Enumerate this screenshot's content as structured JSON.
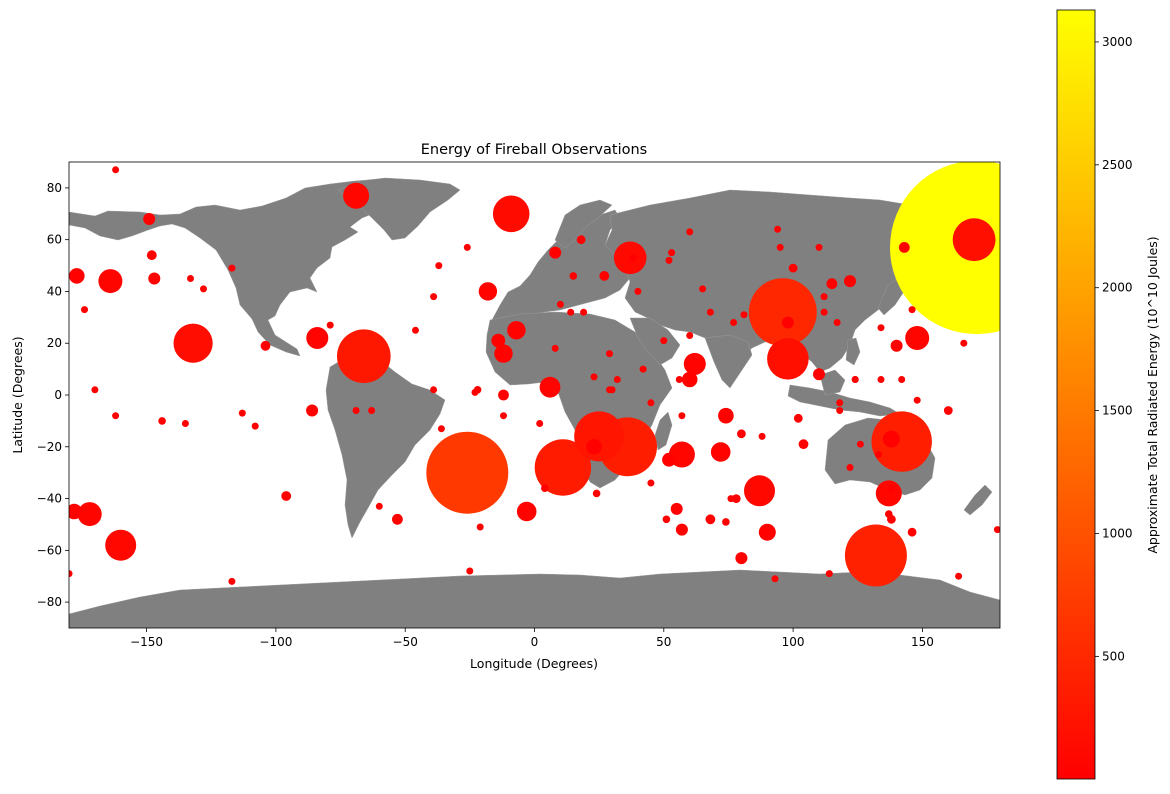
{
  "chart_data": {
    "type": "scatter",
    "title": "Energy of Fireball Observations",
    "xlabel": "Longitude (Degrees)",
    "ylabel": "Latitude (Degrees)",
    "xlim": [
      -180,
      180
    ],
    "ylim": [
      -90,
      90
    ],
    "xticks": [
      -150,
      -100,
      -50,
      0,
      50,
      100,
      150
    ],
    "yticks": [
      -80,
      -60,
      -40,
      -20,
      0,
      20,
      40,
      60,
      80
    ],
    "basemap": "world land masses",
    "colors": {
      "land": "#808080",
      "plot_background": "#ffffff",
      "colormap_low": "#ff0000",
      "colormap_high": "#ffff00"
    },
    "colorbar": {
      "label": "Approximate Total Radiated Energy (10^10 Joules)",
      "colormap": "red-to-yellow",
      "range": [
        1,
        3130
      ],
      "ticks": [
        500,
        1000,
        1500,
        2000,
        2500,
        3000
      ]
    },
    "grid": false,
    "points": [
      {
        "lon": 171,
        "lat": 57,
        "energy": 3130
      },
      {
        "lon": -26,
        "lat": -30,
        "energy": 700
      },
      {
        "lon": 96,
        "lat": 32,
        "energy": 480
      },
      {
        "lon": 132,
        "lat": -62,
        "energy": 400
      },
      {
        "lon": 142,
        "lat": -18,
        "energy": 380
      },
      {
        "lon": 36,
        "lat": -20,
        "energy": 360
      },
      {
        "lon": 11,
        "lat": -28,
        "energy": 330
      },
      {
        "lon": -66,
        "lat": 15,
        "energy": 300
      },
      {
        "lon": 25,
        "lat": -16,
        "energy": 260
      },
      {
        "lon": 98,
        "lat": 14,
        "energy": 180
      },
      {
        "lon": 170,
        "lat": 60,
        "energy": 190
      },
      {
        "lon": -132,
        "lat": 20,
        "energy": 160
      },
      {
        "lon": -9,
        "lat": 70,
        "energy": 140
      },
      {
        "lon": 37,
        "lat": 53,
        "energy": 110
      },
      {
        "lon": 87,
        "lat": -37,
        "energy": 100
      },
      {
        "lon": -160,
        "lat": -58,
        "energy": 100
      },
      {
        "lon": 137,
        "lat": -38,
        "energy": 70
      },
      {
        "lon": 57,
        "lat": -23,
        "energy": 70
      },
      {
        "lon": -69,
        "lat": 77,
        "energy": 70
      },
      {
        "lon": 148,
        "lat": 22,
        "energy": 60
      },
      {
        "lon": -172,
        "lat": -46,
        "energy": 60
      },
      {
        "lon": -164,
        "lat": 44,
        "energy": 60
      },
      {
        "lon": -84,
        "lat": 22,
        "energy": 50
      },
      {
        "lon": 62,
        "lat": 12,
        "energy": 50
      },
      {
        "lon": 72,
        "lat": -22,
        "energy": 40
      },
      {
        "lon": 6,
        "lat": 3,
        "energy": 45
      },
      {
        "lon": -3,
        "lat": -45,
        "energy": 40
      },
      {
        "lon": -12,
        "lat": 16,
        "energy": 35
      },
      {
        "lon": -7,
        "lat": 25,
        "energy": 35
      },
      {
        "lon": -18,
        "lat": 40,
        "energy": 35
      },
      {
        "lon": 90,
        "lat": -53,
        "energy": 30
      },
      {
        "lon": 138,
        "lat": -17,
        "energy": 30
      },
      {
        "lon": 74,
        "lat": -8,
        "energy": 25
      },
      {
        "lon": -177,
        "lat": 46,
        "energy": 25
      },
      {
        "lon": -178,
        "lat": -45,
        "energy": 25
      },
      {
        "lon": 60,
        "lat": 6,
        "energy": 25
      },
      {
        "lon": 23,
        "lat": -20,
        "energy": 25
      },
      {
        "lon": -14,
        "lat": 21,
        "energy": 20
      },
      {
        "lon": 52,
        "lat": -25,
        "energy": 20
      },
      {
        "lon": 8,
        "lat": 55,
        "energy": 15
      },
      {
        "lon": 55,
        "lat": -44,
        "energy": 15
      },
      {
        "lon": -147,
        "lat": 45,
        "energy": 15
      },
      {
        "lon": -149,
        "lat": 68,
        "energy": 15
      },
      {
        "lon": -86,
        "lat": -6,
        "energy": 15
      },
      {
        "lon": 98,
        "lat": 28,
        "energy": 15
      },
      {
        "lon": 110,
        "lat": 8,
        "energy": 15
      },
      {
        "lon": 122,
        "lat": 44,
        "energy": 15
      },
      {
        "lon": 80,
        "lat": -63,
        "energy": 15
      },
      {
        "lon": 57,
        "lat": -52,
        "energy": 15
      },
      {
        "lon": -53,
        "lat": -48,
        "energy": 12
      },
      {
        "lon": -12,
        "lat": 0,
        "energy": 12
      },
      {
        "lon": 140,
        "lat": 19,
        "energy": 15
      },
      {
        "lon": 143,
        "lat": 57,
        "energy": 12
      },
      {
        "lon": 115,
        "lat": 43,
        "energy": 12
      },
      {
        "lon": -148,
        "lat": 54,
        "energy": 10
      },
      {
        "lon": -96,
        "lat": -39,
        "energy": 10
      },
      {
        "lon": 104,
        "lat": -19,
        "energy": 10
      },
      {
        "lon": -104,
        "lat": 19,
        "energy": 10
      },
      {
        "lon": 27,
        "lat": 46,
        "energy": 10
      },
      {
        "lon": 68,
        "lat": -48,
        "energy": 10
      },
      {
        "lon": 160,
        "lat": -6,
        "energy": 8
      },
      {
        "lon": 78,
        "lat": -40,
        "energy": 8
      },
      {
        "lon": 138,
        "lat": -48,
        "energy": 8
      },
      {
        "lon": 146,
        "lat": -53,
        "energy": 8
      },
      {
        "lon": 80,
        "lat": -15,
        "energy": 8
      },
      {
        "lon": 100,
        "lat": 49,
        "energy": 8
      },
      {
        "lon": 102,
        "lat": -9,
        "energy": 8
      },
      {
        "lon": 18,
        "lat": 60,
        "energy": 8
      },
      {
        "lon": 15,
        "lat": 46,
        "energy": 6
      },
      {
        "lon": -22,
        "lat": 2,
        "energy": 6
      },
      {
        "lon": -144,
        "lat": -10,
        "energy": 6
      },
      {
        "lon": 38,
        "lat": 53,
        "energy": 5
      },
      {
        "lon": 4,
        "lat": -36,
        "energy": 6
      },
      {
        "lon": 24,
        "lat": -38,
        "energy": 6
      },
      {
        "lon": 51,
        "lat": -48,
        "energy": 6
      },
      {
        "lon": 137,
        "lat": -46,
        "energy": 6
      },
      {
        "lon": 74,
        "lat": -49,
        "energy": 6
      },
      {
        "lon": 88,
        "lat": -16,
        "energy": 5
      },
      {
        "lon": -180,
        "lat": -69,
        "energy": 5
      },
      {
        "lon": -39,
        "lat": 2,
        "energy": 5
      },
      {
        "lon": 179,
        "lat": -52,
        "energy": 5
      },
      {
        "lon": 2,
        "lat": -11,
        "energy": 4
      },
      {
        "lon": 142,
        "lat": 6,
        "energy": 4
      },
      {
        "lon": 76,
        "lat": -40,
        "energy": 4
      },
      {
        "lon": 110,
        "lat": 57,
        "energy": 4
      },
      {
        "lon": 134,
        "lat": 26,
        "energy": 4
      },
      {
        "lon": 124,
        "lat": 6,
        "energy": 4
      },
      {
        "lon": -162,
        "lat": -8,
        "energy": 4
      },
      {
        "lon": -60,
        "lat": -43,
        "energy": 4
      },
      {
        "lon": -23,
        "lat": 1,
        "energy": 4
      },
      {
        "lon": -170,
        "lat": 2,
        "energy": 3
      },
      {
        "lon": -36,
        "lat": -13,
        "energy": 3
      },
      {
        "lon": 45,
        "lat": -3,
        "energy": 3
      },
      {
        "lon": 95,
        "lat": 57,
        "energy": 3
      },
      {
        "lon": 94,
        "lat": 64,
        "energy": 3
      },
      {
        "lon": -25,
        "lat": -68,
        "energy": 3
      },
      {
        "lon": 164,
        "lat": -70,
        "energy": 3
      },
      {
        "lon": 117,
        "lat": 28,
        "energy": 3
      },
      {
        "lon": -117,
        "lat": -72,
        "energy": 3
      },
      {
        "lon": 93,
        "lat": -71,
        "energy": 3
      },
      {
        "lon": 29,
        "lat": 2,
        "energy": 3
      },
      {
        "lon": 45,
        "lat": -34,
        "energy": 3
      },
      {
        "lon": 30,
        "lat": 2,
        "energy": 3
      },
      {
        "lon": -21,
        "lat": -51,
        "energy": 2
      },
      {
        "lon": -162,
        "lat": 87,
        "energy": 2
      },
      {
        "lon": -113,
        "lat": -7,
        "energy": 2
      },
      {
        "lon": -46,
        "lat": 25,
        "energy": 2
      },
      {
        "lon": -39,
        "lat": 38,
        "energy": 2
      },
      {
        "lon": -37,
        "lat": 50,
        "energy": 2
      },
      {
        "lon": -26,
        "lat": 57,
        "energy": 2
      },
      {
        "lon": -12,
        "lat": -8,
        "energy": 2
      },
      {
        "lon": 10,
        "lat": 35,
        "energy": 2
      },
      {
        "lon": 8,
        "lat": 18,
        "energy": 2
      },
      {
        "lon": 14,
        "lat": 32,
        "energy": 2
      },
      {
        "lon": 19,
        "lat": 32,
        "energy": 2
      },
      {
        "lon": 23,
        "lat": 7,
        "energy": 2
      },
      {
        "lon": 32,
        "lat": 6,
        "energy": 2
      },
      {
        "lon": 40,
        "lat": 40,
        "energy": 2
      },
      {
        "lon": 52,
        "lat": 52,
        "energy": 2
      },
      {
        "lon": 53,
        "lat": 55,
        "energy": 2
      },
      {
        "lon": 50,
        "lat": 21,
        "energy": 2
      },
      {
        "lon": 56,
        "lat": 6,
        "energy": 2
      },
      {
        "lon": 57,
        "lat": -8,
        "energy": 2
      },
      {
        "lon": 65,
        "lat": 41,
        "energy": 2
      },
      {
        "lon": 60,
        "lat": 23,
        "energy": 2
      },
      {
        "lon": 77,
        "lat": 28,
        "energy": 2
      },
      {
        "lon": 112,
        "lat": 32,
        "energy": 2
      },
      {
        "lon": 112,
        "lat": 38,
        "energy": 2
      },
      {
        "lon": 118,
        "lat": -6,
        "energy": 2
      },
      {
        "lon": 118,
        "lat": -3,
        "energy": 2
      },
      {
        "lon": 122,
        "lat": -28,
        "energy": 2
      },
      {
        "lon": 124,
        "lat": 6,
        "energy": 2
      },
      {
        "lon": 126,
        "lat": -19,
        "energy": 2
      },
      {
        "lon": 134,
        "lat": 6,
        "energy": 2
      },
      {
        "lon": 146,
        "lat": 33,
        "energy": 2
      },
      {
        "lon": 148,
        "lat": -2,
        "energy": 2
      },
      {
        "lon": 166,
        "lat": 20,
        "energy": 2
      },
      {
        "lon": -135,
        "lat": -11,
        "energy": 2
      },
      {
        "lon": -108,
        "lat": -12,
        "energy": 2
      },
      {
        "lon": -69,
        "lat": -6,
        "energy": 2
      },
      {
        "lon": -63,
        "lat": -6,
        "energy": 2
      },
      {
        "lon": -128,
        "lat": 41,
        "energy": 2
      },
      {
        "lon": -133,
        "lat": 45,
        "energy": 2
      },
      {
        "lon": -117,
        "lat": 49,
        "energy": 2
      },
      {
        "lon": -79,
        "lat": 27,
        "energy": 2
      },
      {
        "lon": -174,
        "lat": 33,
        "energy": 2
      },
      {
        "lon": 42,
        "lat": 10,
        "energy": 2
      },
      {
        "lon": 29,
        "lat": 16,
        "energy": 2
      },
      {
        "lon": 81,
        "lat": 31,
        "energy": 2
      },
      {
        "lon": 68,
        "lat": 32,
        "energy": 2
      },
      {
        "lon": 60,
        "lat": 63,
        "energy": 2
      },
      {
        "lon": 114,
        "lat": -69,
        "energy": 2
      },
      {
        "lon": 138,
        "lat": -36,
        "energy": 2
      },
      {
        "lon": 133,
        "lat": -23,
        "energy": 2
      }
    ]
  }
}
